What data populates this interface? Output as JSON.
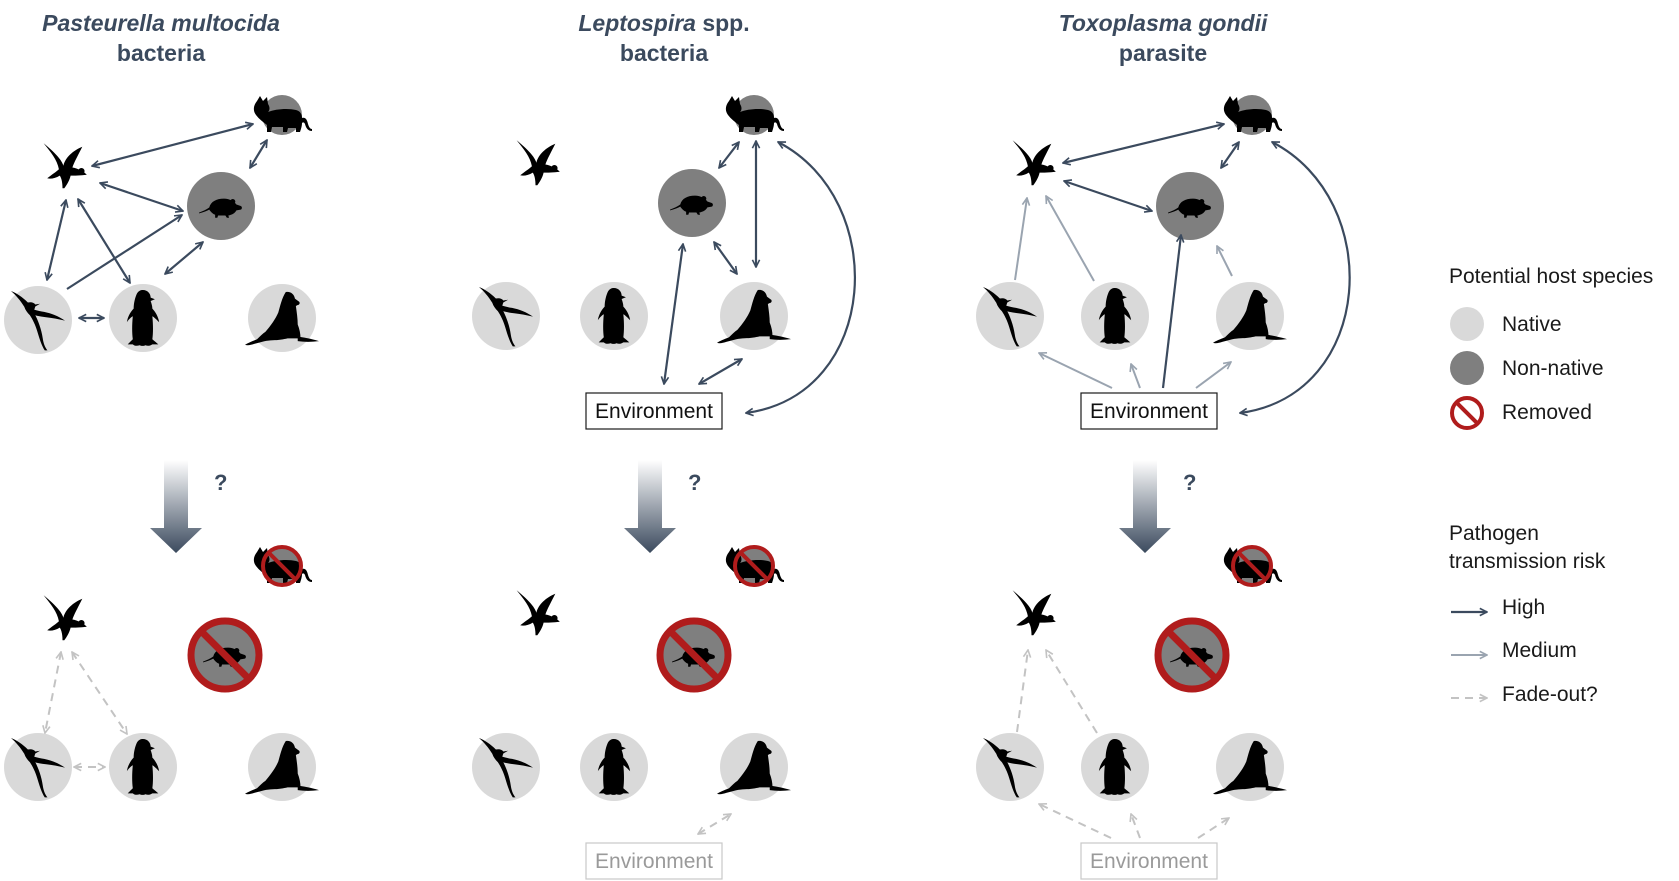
{
  "panels": [
    {
      "name_it": "Pasteurella multocida",
      "name_rest": "",
      "type": "bacteria",
      "env": null
    },
    {
      "name_it": "Leptospira",
      "name_rest": " spp.",
      "type": "bacteria",
      "env": "Environment"
    },
    {
      "name_it": "Toxoplasma gondii",
      "name_rest": "",
      "type": "parasite",
      "env": "Environment"
    }
  ],
  "question_mark": "?",
  "legend": {
    "hosts_title": "Potential host species",
    "native": "Native",
    "non_native": "Non-native",
    "removed": "Removed",
    "risk_title_1": "Pathogen",
    "risk_title_2": "transmission risk",
    "high": "High",
    "medium": "Medium",
    "fade_out": "Fade-out?"
  },
  "colors": {
    "native": "#d9d9d9",
    "non_native": "#7f7f7f",
    "removed": "#b01c1c",
    "high": "#3b4a5e",
    "medium": "#9aa4b0",
    "fade": "#c3c3c3",
    "title": "#3b4a5e"
  },
  "icons": [
    "skua-icon",
    "cat-icon",
    "rat-icon",
    "albatross-icon",
    "penguin-icon",
    "seal-icon"
  ]
}
